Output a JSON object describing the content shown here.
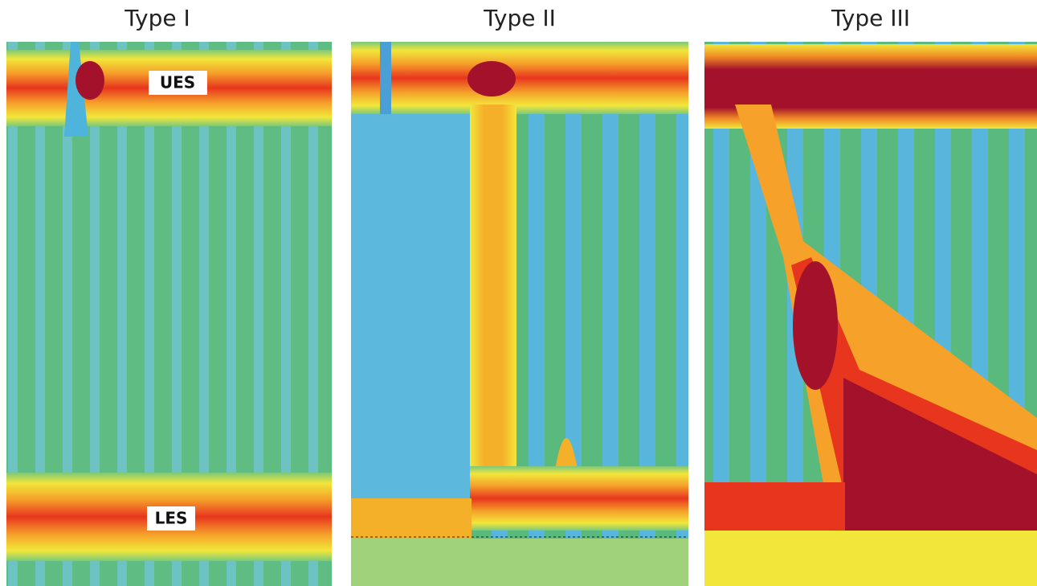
{
  "panels": [
    {
      "title": "Type I",
      "labels": [
        "UES",
        "LES"
      ]
    },
    {
      "title": "Type II"
    },
    {
      "title": "Type III"
    }
  ]
}
